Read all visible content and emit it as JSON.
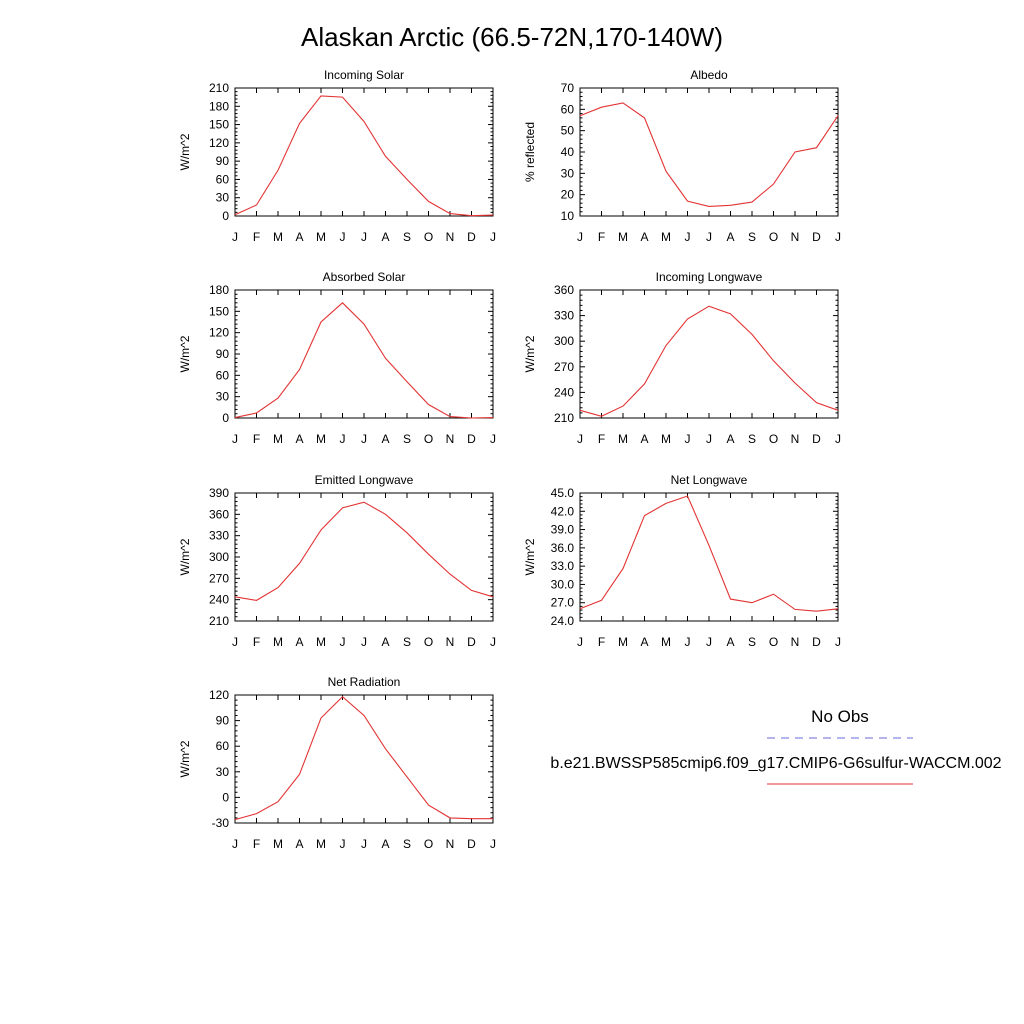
{
  "title": "Alaskan Arctic (66.5-72N,170-140W)",
  "months": [
    "J",
    "F",
    "M",
    "A",
    "M",
    "J",
    "J",
    "A",
    "S",
    "O",
    "N",
    "D",
    "J"
  ],
  "legend": {
    "obs_label": "No Obs",
    "obs_color": "#6a6ad8",
    "model_label": "b.e21.BWSSP585cmip6.f09_g17.CMIP6-G6sulfur-WACCM.002",
    "model_color": "#e33333"
  },
  "chart_data": [
    {
      "type": "line",
      "title": "Incoming Solar",
      "ylabel": "W/m^2",
      "ylim": [
        0,
        210
      ],
      "yticks": [
        0,
        30,
        60,
        90,
        120,
        150,
        180,
        210
      ],
      "ytick_labels": [
        "0",
        "30",
        "60",
        "90",
        "120",
        "150",
        "180",
        "210"
      ],
      "series": [
        {
          "values": [
            2,
            18,
            75,
            152,
            197,
            195,
            155,
            98,
            60,
            24,
            4,
            0.5,
            1.5
          ]
        }
      ]
    },
    {
      "type": "line",
      "title": "Albedo",
      "ylabel": "% reflected",
      "ylim": [
        10,
        70
      ],
      "yticks": [
        10,
        20,
        30,
        40,
        50,
        60,
        70
      ],
      "ytick_labels": [
        "10",
        "20",
        "30",
        "40",
        "50",
        "60",
        "70"
      ],
      "series": [
        {
          "values": [
            57,
            61,
            63,
            56,
            31,
            17,
            14.5,
            15,
            16.5,
            25,
            40,
            42,
            57
          ]
        }
      ]
    },
    {
      "type": "line",
      "title": "Absorbed Solar",
      "ylabel": "W/m^2",
      "ylim": [
        0,
        180
      ],
      "yticks": [
        0,
        30,
        60,
        90,
        120,
        150,
        180
      ],
      "ytick_labels": [
        "0",
        "30",
        "60",
        "90",
        "120",
        "150",
        "180"
      ],
      "series": [
        {
          "values": [
            0.5,
            7,
            28,
            68,
            135,
            162,
            132,
            84,
            51,
            19,
            2,
            0,
            0.5
          ]
        }
      ]
    },
    {
      "type": "line",
      "title": "Incoming Longwave",
      "ylabel": "W/m^2",
      "ylim": [
        210,
        360
      ],
      "yticks": [
        210,
        240,
        270,
        300,
        330,
        360
      ],
      "ytick_labels": [
        "210",
        "240",
        "270",
        "300",
        "330",
        "360"
      ],
      "series": [
        {
          "values": [
            219,
            212,
            224,
            250,
            295,
            326,
            341,
            332,
            308,
            277,
            251,
            228,
            219
          ]
        }
      ]
    },
    {
      "type": "line",
      "title": "Emitted Longwave",
      "ylabel": "W/m^2",
      "ylim": [
        210,
        390
      ],
      "yticks": [
        210,
        240,
        270,
        300,
        330,
        360,
        390
      ],
      "ytick_labels": [
        "210",
        "240",
        "270",
        "300",
        "330",
        "360",
        "390"
      ],
      "series": [
        {
          "values": [
            244,
            239,
            257,
            291,
            338,
            369,
            377,
            360,
            334,
            304,
            276,
            253,
            244
          ]
        }
      ]
    },
    {
      "type": "line",
      "title": "Net Longwave",
      "ylabel": "W/m^2",
      "ylim": [
        24,
        45
      ],
      "yticks": [
        24,
        27,
        30,
        33,
        36,
        39,
        42,
        45
      ],
      "ytick_labels": [
        "24.0",
        "27.0",
        "30.0",
        "33.0",
        "36.0",
        "39.0",
        "42.0",
        "45.0"
      ],
      "series": [
        {
          "values": [
            26,
            27.4,
            32.6,
            41.3,
            43.3,
            44.5,
            36.4,
            27.6,
            27,
            28.4,
            25.9,
            25.6,
            26
          ]
        }
      ]
    },
    {
      "type": "line",
      "title": "Net Radiation",
      "ylabel": "W/m^2",
      "ylim": [
        -30,
        120
      ],
      "yticks": [
        -30,
        0,
        30,
        60,
        90,
        120
      ],
      "ytick_labels": [
        "-30",
        "0",
        "30",
        "60",
        "90",
        "120"
      ],
      "series": [
        {
          "values": [
            -26,
            -19,
            -5,
            27,
            93,
            118,
            96,
            57,
            24,
            -9,
            -24,
            -25,
            -25
          ]
        }
      ]
    }
  ]
}
